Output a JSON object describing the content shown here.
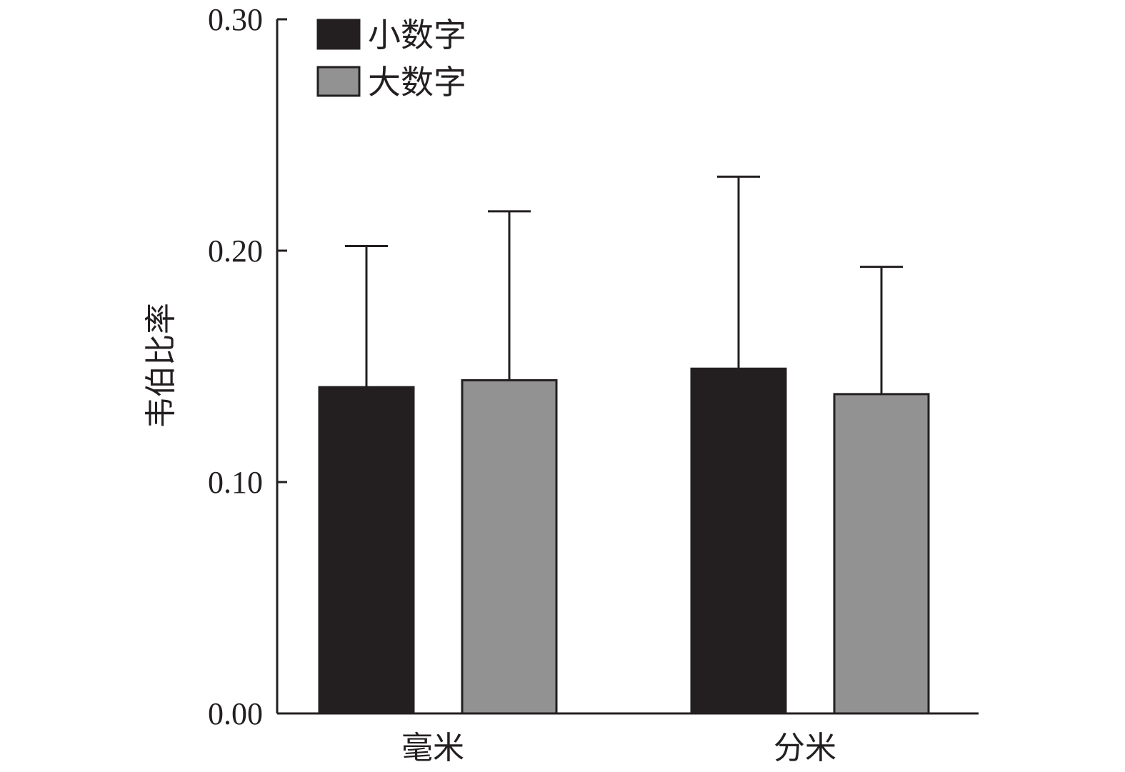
{
  "chart_data": {
    "type": "bar",
    "categories": [
      "毫米",
      "分米"
    ],
    "series": [
      {
        "name": "小数字",
        "color": "#231f20",
        "values": [
          0.141,
          0.149
        ],
        "error": [
          0.061,
          0.083
        ]
      },
      {
        "name": "大数字",
        "color": "#929292",
        "values": [
          0.144,
          0.138
        ],
        "error": [
          0.073,
          0.055
        ]
      }
    ],
    "ylabel": "韦伯比率",
    "xlabel": "",
    "ylim": [
      0,
      0.3
    ],
    "yticks": [
      "0.00",
      "0.10",
      "0.20",
      "0.30"
    ],
    "legend_position": "top-left",
    "grid": false
  }
}
